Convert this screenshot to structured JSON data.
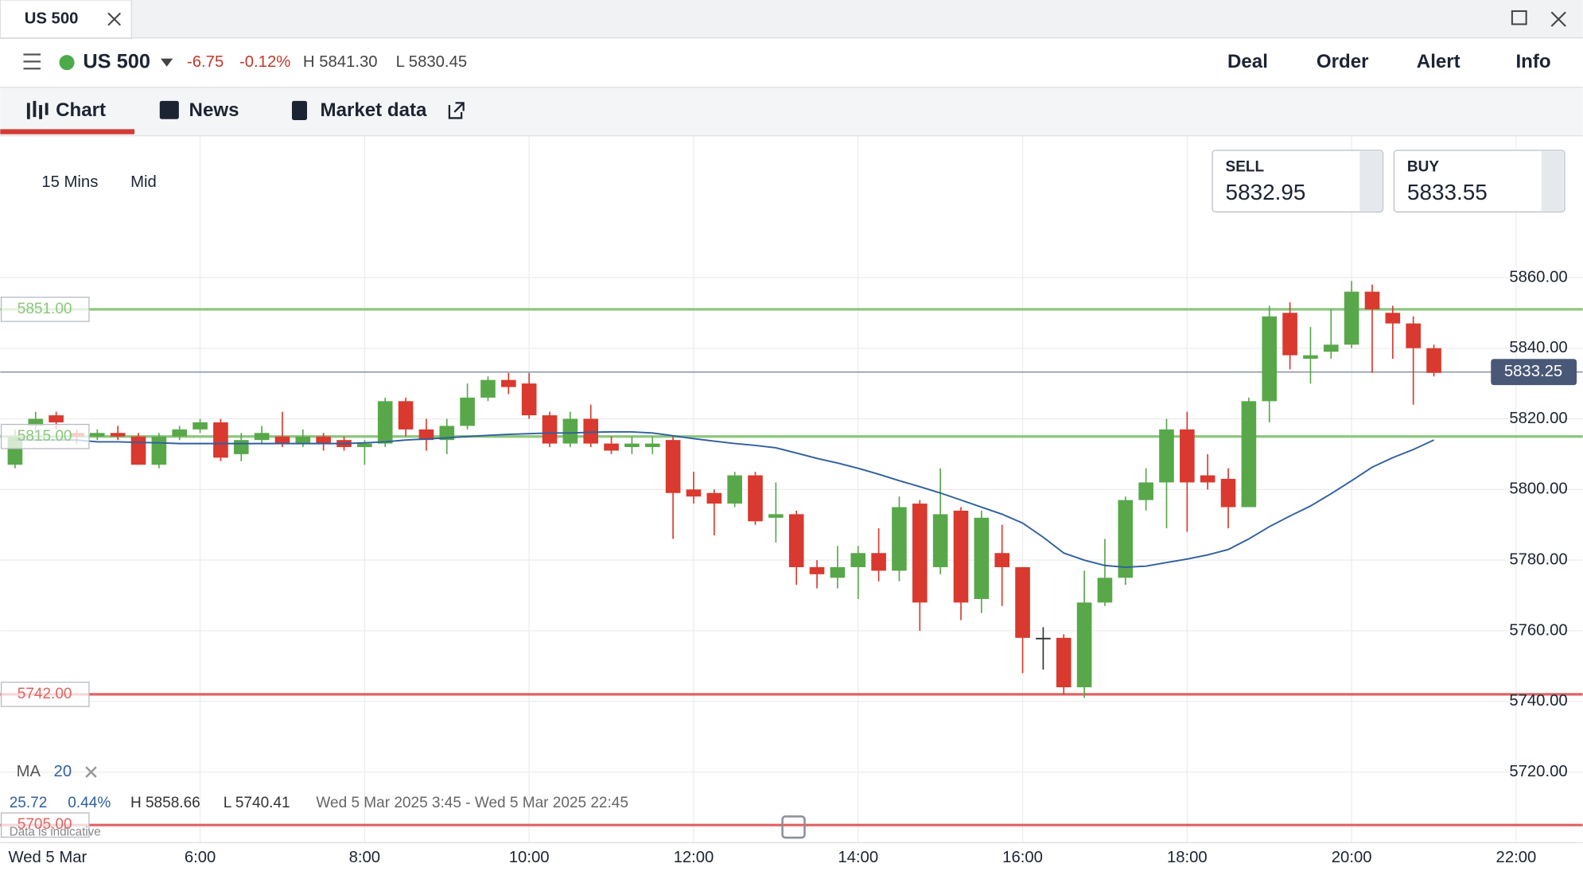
{
  "tab": {
    "title": "US 500"
  },
  "header": {
    "instrument": "US 500",
    "change": "-6.75",
    "change_pct": "-0.12%",
    "high": "H 5841.30",
    "low": "L 5830.45",
    "actions": [
      "Deal",
      "Order",
      "Alert",
      "Info"
    ]
  },
  "nav_tabs": [
    "Chart",
    "News",
    "Market data"
  ],
  "toolbar": {
    "interval": "15 Mins",
    "price_type": "Mid"
  },
  "quote": {
    "sell_label": "SELL",
    "sell": "5832.95",
    "buy_label": "BUY",
    "buy": "5833.55"
  },
  "indicator": {
    "name": "MA",
    "period": "20",
    "change": "25.72",
    "change_pct": "0.44%",
    "high": "H 5858.66",
    "low": "L 5740.41",
    "range": "Wed 5 Mar 2025 3:45 - Wed 5 Mar 2025 22:45"
  },
  "footer": {
    "note": "Data is indicative",
    "date": "Wed 5 Mar"
  },
  "chart_data": {
    "type": "candlestick",
    "x": [
      3.75,
      4,
      4.25,
      4.5,
      4.75,
      5,
      5.25,
      5.5,
      5.75,
      6,
      6.25,
      6.5,
      6.75,
      7,
      7.25,
      7.5,
      7.75,
      8,
      8.25,
      8.5,
      8.75,
      9,
      9.25,
      9.5,
      9.75,
      10,
      10.25,
      10.5,
      10.75,
      11,
      11.25,
      11.5,
      11.75,
      12,
      12.25,
      12.5,
      12.75,
      13,
      13.25,
      13.5,
      13.75,
      14,
      14.25,
      14.5,
      14.75,
      15,
      15.25,
      15.5,
      15.75,
      16,
      16.25,
      16.5,
      16.75,
      17,
      17.25,
      17.5,
      17.75,
      18,
      18.25,
      18.5,
      18.75,
      19,
      19.25,
      19.5,
      19.75,
      20,
      20.25,
      20.5,
      20.75,
      21
    ],
    "open": [
      5807,
      5818,
      5821,
      5816,
      5815,
      5816,
      5815,
      5807,
      5815,
      5817,
      5819,
      5810,
      5814,
      5815,
      5813,
      5815,
      5814,
      5812,
      5813,
      5825,
      5817,
      5814,
      5818,
      5826,
      5831,
      5830,
      5821,
      5813,
      5820,
      5813,
      5812,
      5812,
      5814,
      5800,
      5799,
      5796,
      5804,
      5792,
      5793,
      5778,
      5775,
      5778,
      5782,
      5777,
      5796,
      5778,
      5794,
      5769,
      5782,
      5778,
      5758,
      5758,
      5744,
      5768,
      5775,
      5797,
      5802,
      5817,
      5804,
      5803,
      5795,
      5825,
      5850,
      5837,
      5839,
      5841,
      5856,
      5850,
      5847,
      5840
    ],
    "high": [
      5817,
      5822,
      5822,
      5817,
      5817,
      5818,
      5816,
      5816,
      5818,
      5820,
      5820,
      5816,
      5818,
      5822,
      5817,
      5816,
      5815,
      5814,
      5826,
      5826,
      5820,
      5820,
      5830,
      5832,
      5833,
      5833,
      5822,
      5822,
      5824,
      5815,
      5815,
      5815,
      5815,
      5805,
      5800,
      5805,
      5805,
      5802,
      5794,
      5780,
      5784,
      5784,
      5789,
      5798,
      5797,
      5806,
      5795,
      5794,
      5790,
      5778,
      5761,
      5759,
      5777,
      5786,
      5798,
      5806,
      5820,
      5822,
      5810,
      5806,
      5826,
      5852,
      5853,
      5846,
      5851,
      5859,
      5858,
      5852,
      5849,
      5841
    ],
    "low": [
      5806,
      5816,
      5817,
      5813,
      5814,
      5814,
      5807,
      5806,
      5814,
      5816,
      5808,
      5808,
      5813,
      5812,
      5812,
      5811,
      5811,
      5807,
      5812,
      5815,
      5811,
      5810,
      5817,
      5825,
      5827,
      5820,
      5812,
      5812,
      5812,
      5810,
      5810,
      5810,
      5786,
      5796,
      5787,
      5795,
      5790,
      5785,
      5773,
      5772,
      5772,
      5769,
      5774,
      5774,
      5760,
      5776,
      5763,
      5765,
      5767,
      5748,
      5749,
      5742,
      5741,
      5767,
      5773,
      5794,
      5789,
      5788,
      5800,
      5789,
      5795,
      5819,
      5834,
      5830,
      5837,
      5840,
      5833,
      5837,
      5824,
      5832
    ],
    "close": [
      5815,
      5820,
      5819,
      5815,
      5816,
      5815,
      5807,
      5815,
      5817,
      5819,
      5809,
      5814,
      5816,
      5813,
      5815,
      5813,
      5812,
      5813,
      5825,
      5817,
      5814,
      5818,
      5826,
      5831,
      5829,
      5821,
      5813,
      5820,
      5813,
      5811,
      5813,
      5813,
      5799,
      5798,
      5796,
      5804,
      5791,
      5793,
      5778,
      5776,
      5778,
      5782,
      5777,
      5795,
      5768,
      5793,
      5768,
      5792,
      5778,
      5758,
      5758,
      5744,
      5768,
      5775,
      5797,
      5802,
      5817,
      5802,
      5802,
      5795,
      5825,
      5849,
      5838,
      5838,
      5841,
      5856,
      5851,
      5847,
      5840,
      5833
    ],
    "up_color": "#58a84a",
    "down_color": "#d9392e",
    "flat_color": "#333333",
    "ma_values": [
      5814,
      5814,
      5814,
      5814,
      5813.5,
      5813.5,
      5813.3,
      5813.2,
      5813,
      5813,
      5813,
      5813,
      5813,
      5813,
      5813,
      5813,
      5813,
      5813.2,
      5813.5,
      5814,
      5814.3,
      5814.6,
      5815,
      5815.3,
      5815.6,
      5815.8,
      5816,
      5816,
      5816.2,
      5816.3,
      5816.3,
      5816,
      5815.2,
      5814.4,
      5813.7,
      5813,
      5812.5,
      5811.8,
      5810.3,
      5808.8,
      5807.5,
      5806,
      5804.3,
      5802.5,
      5800.8,
      5799,
      5797,
      5795,
      5793,
      5790.5,
      5786.5,
      5782,
      5780,
      5778.5,
      5778,
      5778.3,
      5779.3,
      5780.3,
      5781.5,
      5783,
      5786,
      5789.5,
      5792.5,
      5795.3,
      5798.8,
      5802.5,
      5806.3,
      5809,
      5811.3,
      5814
    ],
    "ma_color": "#2f5f9e",
    "levels": [
      {
        "value": 5851,
        "label": "5851.00",
        "color": "#8cc67e"
      },
      {
        "value": 5815,
        "label": "5815.00",
        "color": "#8cc67e"
      },
      {
        "value": 5742,
        "label": "5742.00",
        "color": "#e06262"
      },
      {
        "value": 5705,
        "label": "5705.00",
        "color": "#e06262"
      }
    ],
    "current": {
      "value": 5833.25,
      "label": "5833.25"
    },
    "xlim": [
      3.57,
      22.81
    ],
    "xticks": [
      {
        "value": 6,
        "label": "6:00"
      },
      {
        "value": 8,
        "label": "8:00"
      },
      {
        "value": 10,
        "label": "10:00"
      },
      {
        "value": 12,
        "label": "12:00"
      },
      {
        "value": 14,
        "label": "14:00"
      },
      {
        "value": 16,
        "label": "16:00"
      },
      {
        "value": 18,
        "label": "18:00"
      },
      {
        "value": 20,
        "label": "20:00"
      },
      {
        "value": 22,
        "label": "22:00"
      }
    ],
    "ylim": [
      5700,
      5900
    ],
    "yticks": [
      {
        "value": 5720,
        "label": "5720.00"
      },
      {
        "value": 5740,
        "label": "5740.00"
      },
      {
        "value": 5760,
        "label": "5760.00"
      },
      {
        "value": 5780,
        "label": "5780.00"
      },
      {
        "value": 5800,
        "label": "5800.00"
      },
      {
        "value": 5820,
        "label": "5820.00"
      },
      {
        "value": 5840,
        "label": "5840.00"
      },
      {
        "value": 5860,
        "label": "5860.00"
      }
    ],
    "grid": true
  }
}
